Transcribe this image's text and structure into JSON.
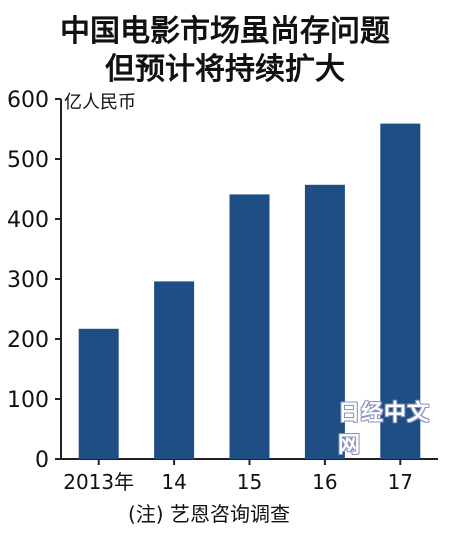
{
  "header": {
    "title_line1": "中国电影市场虽尚存问题",
    "title_line2": "但预计将持续扩大"
  },
  "chart_data": {
    "type": "bar",
    "categories": [
      "2013年",
      "14",
      "15",
      "16",
      "17"
    ],
    "values": [
      217,
      296,
      441,
      457,
      559
    ],
    "ylabel": "亿人民币",
    "ylim": [
      0,
      600
    ],
    "yticks": [
      0,
      100,
      200,
      300,
      400,
      500,
      600
    ],
    "grid": false,
    "color": "#1f4e85"
  },
  "footnote": "(注) 艺恩咨询调查",
  "watermark": "日经中文网"
}
